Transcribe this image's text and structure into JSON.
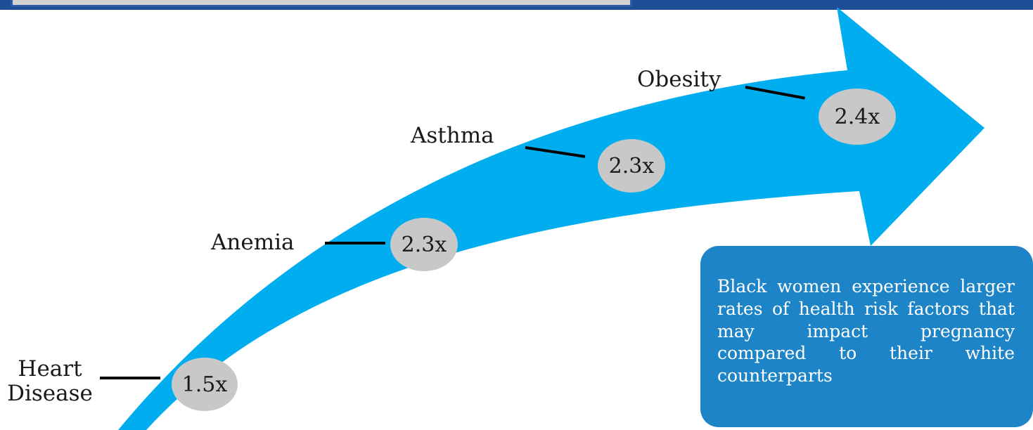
{
  "colors": {
    "arrow": "#00aeef",
    "bubble": "#c8c8c8",
    "callout": "#1e84c8",
    "header_bar": "#1f4e96",
    "connector": "#000000"
  },
  "risk_factors": [
    {
      "label": "Heart Disease",
      "multiplier": "1.5x"
    },
    {
      "label": "Anemia",
      "multiplier": "2.3x"
    },
    {
      "label": "Asthma",
      "multiplier": "2.3x"
    },
    {
      "label": "Obesity",
      "multiplier": "2.4x"
    }
  ],
  "callout": {
    "text": "Black women experience larger rates of health risk factors that may impact pregnancy compared to their white counterparts"
  }
}
